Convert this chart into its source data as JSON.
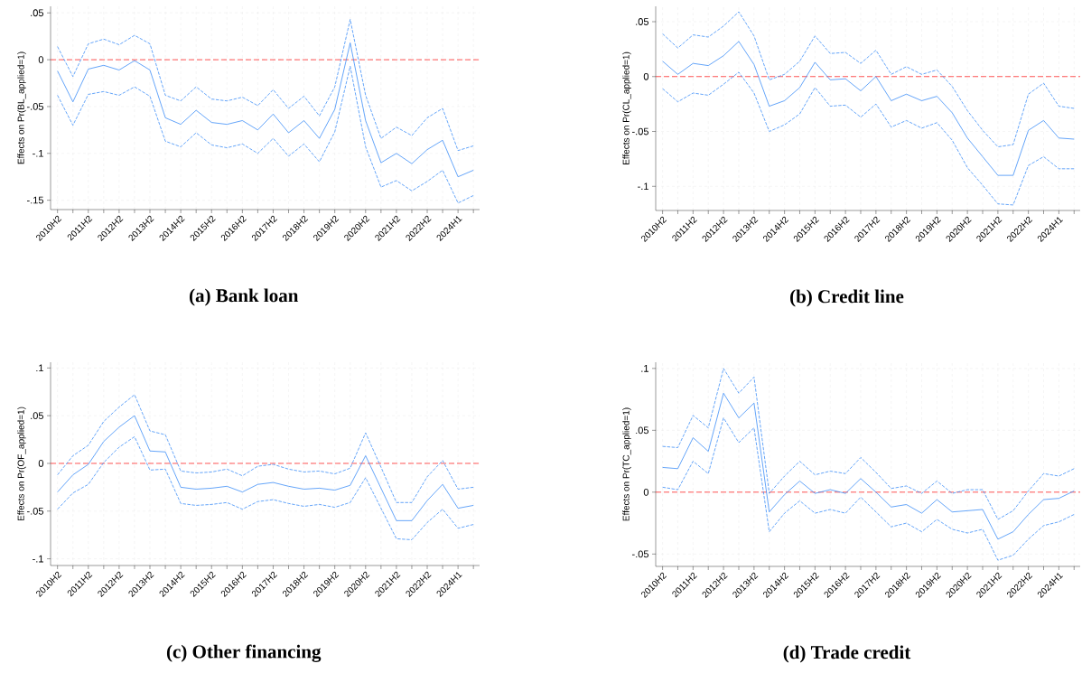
{
  "chart_data": [
    {
      "type": "line",
      "title": "(a) Bank loan",
      "ylabel": "Effects on Pr(BL_applied=1)",
      "categories": [
        "2010H2",
        null,
        "2011H2",
        null,
        "2012H2",
        null,
        "2013H2",
        null,
        "2014H2",
        null,
        "2015H2",
        null,
        "2016H2",
        null,
        "2017H2",
        null,
        "2018H2",
        null,
        "2019H2",
        null,
        "2020H2",
        null,
        "2021H2",
        null,
        "2022H2",
        null,
        "2024H1",
        null
      ],
      "series": [
        {
          "color": "#3d8ef7",
          "line_style": "solid",
          "values": [
            -0.012,
            -0.045,
            -0.01,
            -0.006,
            -0.011,
            -0.001,
            -0.011,
            -0.062,
            -0.069,
            -0.054,
            -0.067,
            -0.069,
            -0.065,
            -0.075,
            -0.058,
            -0.078,
            -0.065,
            -0.084,
            -0.053,
            0.018,
            -0.065,
            -0.11,
            -0.1,
            -0.111,
            -0.096,
            -0.086,
            -0.125,
            -0.118
          ]
        },
        {
          "color": "#3d8ef7",
          "line_style": "dashed",
          "values": [
            0.014,
            -0.018,
            0.017,
            0.022,
            0.016,
            0.026,
            0.017,
            -0.038,
            -0.044,
            -0.029,
            -0.042,
            -0.044,
            -0.04,
            -0.049,
            -0.032,
            -0.052,
            -0.039,
            -0.06,
            -0.029,
            0.043,
            -0.038,
            -0.084,
            -0.072,
            -0.081,
            -0.062,
            -0.052,
            -0.097,
            -0.092
          ]
        },
        {
          "color": "#3d8ef7",
          "line_style": "dashed",
          "values": [
            -0.038,
            -0.07,
            -0.037,
            -0.034,
            -0.038,
            -0.029,
            -0.039,
            -0.087,
            -0.093,
            -0.078,
            -0.091,
            -0.094,
            -0.09,
            -0.1,
            -0.084,
            -0.103,
            -0.09,
            -0.109,
            -0.077,
            -0.007,
            -0.093,
            -0.136,
            -0.129,
            -0.14,
            -0.13,
            -0.118,
            -0.153,
            -0.145
          ]
        }
      ],
      "ylim": [
        -0.16,
        0.057
      ],
      "yticks": [
        {
          "value": -0.15,
          "label": "-.15"
        },
        {
          "value": -0.1,
          "label": "-.1"
        },
        {
          "value": -0.05,
          "label": "-.05"
        },
        0,
        {
          "value": 0.05,
          "label": ".05"
        }
      ],
      "ref_lines": [
        {
          "axis": "y",
          "value": 0,
          "color": "#ff2a2a",
          "line_style": "dashed"
        }
      ],
      "grid": true
    },
    {
      "type": "line",
      "title": "(b) Credit line",
      "ylabel": "Effects on Pr(CL_applied=1)",
      "categories": [
        "2010H2",
        null,
        "2011H2",
        null,
        "2012H2",
        null,
        "2013H2",
        null,
        "2014H2",
        null,
        "2015H2",
        null,
        "2016H2",
        null,
        "2017H2",
        null,
        "2018H2",
        null,
        "2019H2",
        null,
        "2020H2",
        null,
        "2021H2",
        null,
        "2022H2",
        null,
        "2024H1",
        null
      ],
      "series": [
        {
          "color": "#3d8ef7",
          "line_style": "solid",
          "values": [
            0.014,
            0.002,
            0.012,
            0.01,
            0.019,
            0.032,
            0.011,
            -0.027,
            -0.022,
            -0.01,
            0.013,
            -0.003,
            -0.002,
            -0.013,
            0.0,
            -0.022,
            -0.016,
            -0.022,
            -0.018,
            -0.033,
            -0.056,
            -0.073,
            -0.09,
            -0.09,
            -0.049,
            -0.04,
            -0.056,
            -0.057
          ]
        },
        {
          "color": "#3d8ef7",
          "line_style": "dashed",
          "values": [
            0.039,
            0.026,
            0.038,
            0.036,
            0.046,
            0.059,
            0.037,
            -0.003,
            0.002,
            0.014,
            0.037,
            0.021,
            0.022,
            0.012,
            0.024,
            0.002,
            0.009,
            0.002,
            0.006,
            -0.009,
            -0.031,
            -0.049,
            -0.064,
            -0.062,
            -0.016,
            -0.006,
            -0.027,
            -0.029
          ]
        },
        {
          "color": "#3d8ef7",
          "line_style": "dashed",
          "values": [
            -0.011,
            -0.023,
            -0.015,
            -0.017,
            -0.007,
            0.004,
            -0.015,
            -0.05,
            -0.044,
            -0.034,
            -0.01,
            -0.027,
            -0.026,
            -0.037,
            -0.025,
            -0.046,
            -0.04,
            -0.047,
            -0.042,
            -0.058,
            -0.083,
            -0.099,
            -0.116,
            -0.117,
            -0.081,
            -0.073,
            -0.084,
            -0.084
          ]
        }
      ],
      "ylim": [
        -0.122,
        0.064
      ],
      "yticks": [
        {
          "value": -0.1,
          "label": "-.1"
        },
        {
          "value": -0.05,
          "label": "-.05"
        },
        0,
        {
          "value": 0.05,
          "label": ".05"
        }
      ],
      "ref_lines": [
        {
          "axis": "y",
          "value": 0,
          "color": "#ff2a2a",
          "line_style": "dashed"
        }
      ],
      "grid": true
    },
    {
      "type": "line",
      "title": "(c) Other financing",
      "ylabel": "Effects on Pr(OF_applied=1)",
      "categories": [
        "2010H2",
        null,
        "2011H2",
        null,
        "2012H2",
        null,
        "2013H2",
        null,
        "2014H2",
        null,
        "2015H2",
        null,
        "2016H2",
        null,
        "2017H2",
        null,
        "2018H2",
        null,
        "2019H2",
        null,
        "2020H2",
        null,
        "2021H2",
        null,
        "2022H2",
        null,
        "2024H1",
        null
      ],
      "series": [
        {
          "color": "#3d8ef7",
          "line_style": "solid",
          "values": [
            -0.03,
            -0.012,
            -0.001,
            0.023,
            0.038,
            0.05,
            0.013,
            0.012,
            -0.025,
            -0.027,
            -0.026,
            -0.024,
            -0.03,
            -0.022,
            -0.02,
            -0.024,
            -0.027,
            -0.026,
            -0.028,
            -0.023,
            0.008,
            -0.026,
            -0.06,
            -0.06,
            -0.039,
            -0.022,
            -0.047,
            -0.044
          ]
        },
        {
          "color": "#3d8ef7",
          "line_style": "dashed",
          "values": [
            -0.012,
            0.008,
            0.019,
            0.044,
            0.059,
            0.072,
            0.034,
            0.03,
            -0.008,
            -0.01,
            -0.009,
            -0.006,
            -0.013,
            -0.003,
            -0.001,
            -0.006,
            -0.009,
            -0.008,
            -0.011,
            -0.005,
            0.032,
            -0.004,
            -0.041,
            -0.041,
            -0.014,
            0.003,
            -0.027,
            -0.025
          ]
        },
        {
          "color": "#3d8ef7",
          "line_style": "dashed",
          "values": [
            -0.048,
            -0.031,
            -0.022,
            0.001,
            0.017,
            0.028,
            -0.007,
            -0.006,
            -0.042,
            -0.044,
            -0.043,
            -0.041,
            -0.048,
            -0.04,
            -0.038,
            -0.042,
            -0.045,
            -0.043,
            -0.046,
            -0.041,
            -0.015,
            -0.047,
            -0.079,
            -0.08,
            -0.062,
            -0.048,
            -0.068,
            -0.064
          ]
        }
      ],
      "ylim": [
        -0.107,
        0.106
      ],
      "yticks": [
        {
          "value": -0.1,
          "label": "-.1"
        },
        {
          "value": -0.05,
          "label": "-.05"
        },
        0,
        {
          "value": 0.05,
          "label": ".05"
        },
        {
          "value": 0.1,
          "label": ".1"
        }
      ],
      "ref_lines": [
        {
          "axis": "y",
          "value": 0,
          "color": "#ff2a2a",
          "line_style": "dashed"
        }
      ],
      "grid": true
    },
    {
      "type": "line",
      "title": "(d) Trade credit",
      "ylabel": "Effects on Pr(TC_applied=1)",
      "categories": [
        "2010H2",
        null,
        "2011H2",
        null,
        "2012H2",
        null,
        "2013H2",
        null,
        "2014H2",
        null,
        "2015H2",
        null,
        "2016H2",
        null,
        "2017H2",
        null,
        "2018H2",
        null,
        "2019H2",
        null,
        "2020H2",
        null,
        "2021H2",
        null,
        "2022H2",
        null,
        "2024H1",
        null
      ],
      "series": [
        {
          "color": "#3d8ef7",
          "line_style": "solid",
          "values": [
            0.02,
            0.019,
            0.044,
            0.033,
            0.08,
            0.06,
            0.072,
            -0.016,
            -0.002,
            0.009,
            -0.001,
            0.002,
            -0.001,
            0.011,
            0.0,
            -0.012,
            -0.01,
            -0.017,
            -0.006,
            -0.016,
            -0.015,
            -0.014,
            -0.038,
            -0.032,
            -0.018,
            -0.006,
            -0.005,
            0.001
          ]
        },
        {
          "color": "#3d8ef7",
          "line_style": "dashed",
          "values": [
            0.037,
            0.036,
            0.062,
            0.052,
            0.1,
            0.08,
            0.093,
            -0.001,
            0.013,
            0.025,
            0.014,
            0.017,
            0.015,
            0.028,
            0.016,
            0.003,
            0.005,
            -0.001,
            0.009,
            -0.001,
            0.002,
            0.002,
            -0.022,
            -0.015,
            0.001,
            0.015,
            0.013,
            0.019
          ]
        },
        {
          "color": "#3d8ef7",
          "line_style": "dashed",
          "values": [
            0.004,
            0.002,
            0.025,
            0.015,
            0.06,
            0.04,
            0.052,
            -0.032,
            -0.017,
            -0.007,
            -0.017,
            -0.014,
            -0.017,
            -0.004,
            -0.016,
            -0.028,
            -0.025,
            -0.032,
            -0.022,
            -0.03,
            -0.033,
            -0.03,
            -0.055,
            -0.051,
            -0.038,
            -0.027,
            -0.024,
            -0.018
          ]
        }
      ],
      "ylim": [
        -0.06,
        0.105
      ],
      "yticks": [
        {
          "value": -0.05,
          "label": "-.05"
        },
        0,
        {
          "value": 0.05,
          "label": ".05"
        },
        {
          "value": 0.1,
          "label": ".1"
        }
      ],
      "ref_lines": [
        {
          "axis": "y",
          "value": 0,
          "color": "#ff2a2a",
          "line_style": "dashed"
        }
      ],
      "grid": true
    }
  ]
}
